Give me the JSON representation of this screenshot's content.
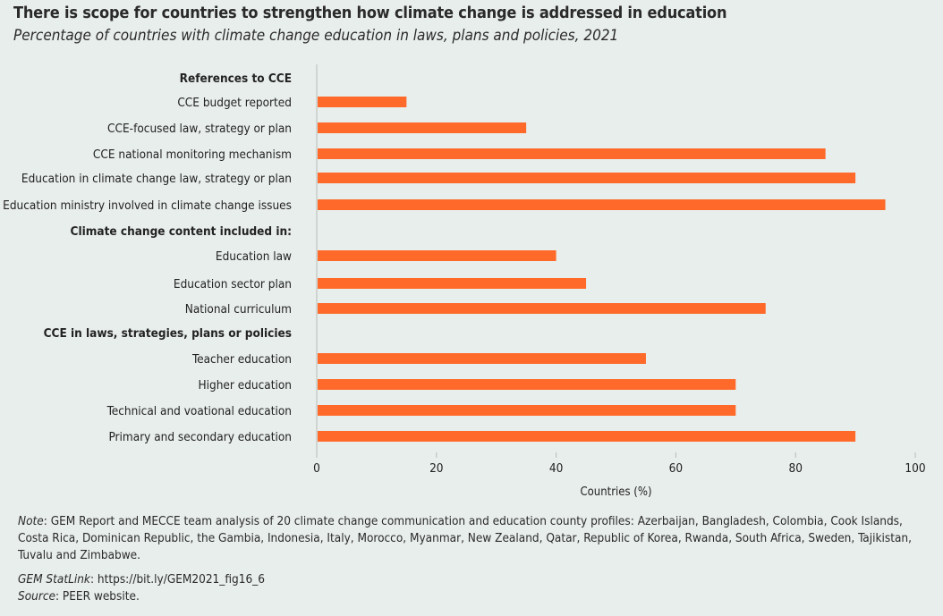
{
  "title": "There is scope for countries to strengthen how climate change is addressed in education",
  "subtitle": "Percentage of countries with climate change education in laws, plans and policies, 2021",
  "colors": {
    "bar": "#ff6a2a",
    "background": "#e8eeeb",
    "axis": "#b8bcba"
  },
  "chart_data": {
    "type": "bar",
    "orientation": "horizontal",
    "xlabel": "Countries (%)",
    "xlim": [
      0,
      100
    ],
    "xticks": [
      0,
      20,
      40,
      60,
      80,
      100
    ],
    "grid": false,
    "rows": [
      {
        "label": "References to CCE",
        "heading": true
      },
      {
        "label": "CCE budget reported",
        "value": 15
      },
      {
        "label": "CCE-focused law, strategy or plan",
        "value": 35
      },
      {
        "label": "CCE national monitoring mechanism",
        "value": 85
      },
      {
        "label": "Education in climate change law, strategy or plan",
        "value": 90
      },
      {
        "label": "Education ministry involved in climate change issues",
        "value": 95
      },
      {
        "label": "Climate change content included in:",
        "heading": true
      },
      {
        "label": "Education law",
        "value": 40
      },
      {
        "label": "Education sector plan",
        "value": 45
      },
      {
        "label": "National curriculum",
        "value": 75
      },
      {
        "label": "CCE in laws, strategies, plans or policies",
        "heading": true
      },
      {
        "label": "Teacher education",
        "value": 55
      },
      {
        "label": "Higher education",
        "value": 70
      },
      {
        "label": "Technical and voational education",
        "value": 70
      },
      {
        "label": "Primary and secondary education",
        "value": 90
      }
    ]
  },
  "notes": {
    "note_label": "Note",
    "note_text": ": GEM Report and MECCE team analysis of 20 climate change communication and education county profiles: Azerbaijan, Bangladesh, Colombia, Cook Islands, Costa Rica, Dominican Republic, the Gambia, Indonesia, Italy, Morocco, Myanmar, New Zealand, Qatar, Republic of Korea, Rwanda, South Africa, Sweden, Tajikistan, Tuvalu and Zimbabwe.",
    "statlink_label": "GEM StatLink",
    "statlink_text": ": https://bit.ly/GEM2021_fig16_6",
    "source_label": "Source",
    "source_text": ": PEER website."
  }
}
